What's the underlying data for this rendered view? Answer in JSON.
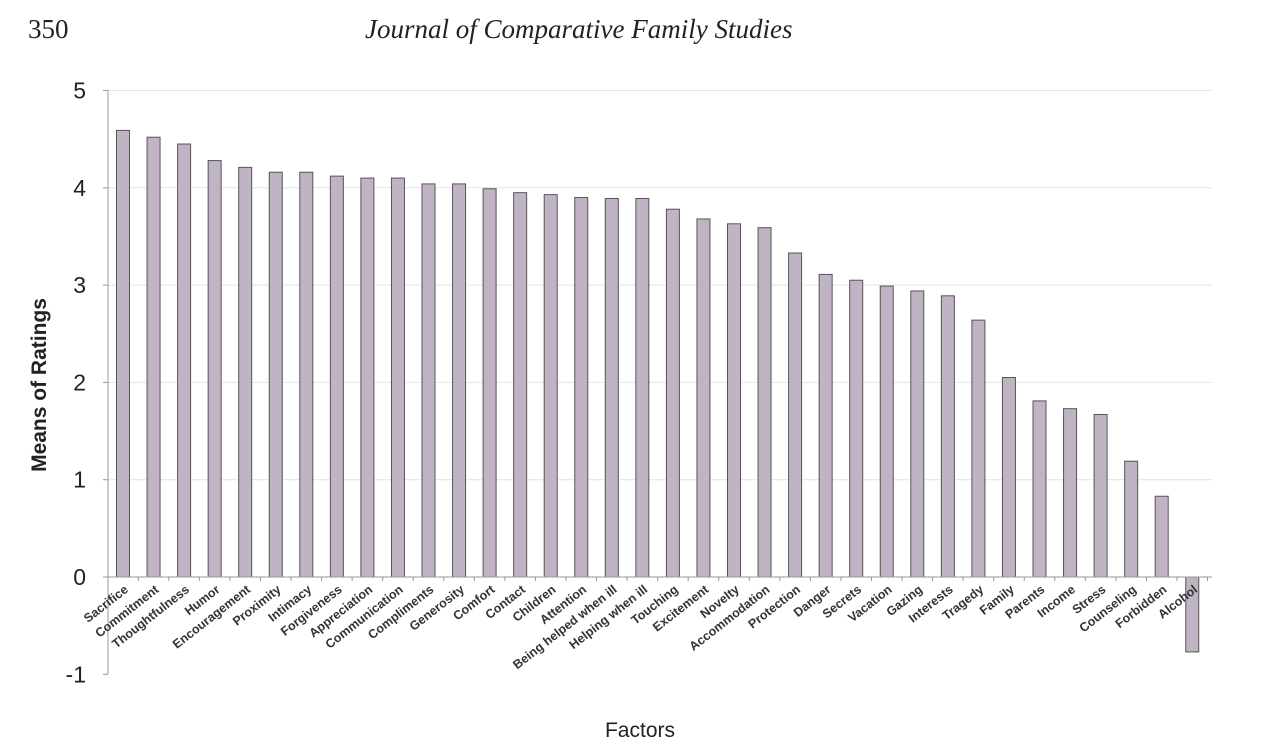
{
  "page": {
    "number": "350",
    "journal_title": "Journal of Comparative Family Studies"
  },
  "colors": {
    "bar": "#c0b4c4",
    "bar_stroke": "#555",
    "axis": "#999",
    "grid": "#e4e4e4"
  },
  "chart_data": {
    "type": "bar",
    "title": "",
    "xlabel": "Factors",
    "ylabel": "Means of Ratings",
    "ylim": [
      -1,
      5
    ],
    "yticks": [
      "-1",
      "0",
      "1",
      "2",
      "3",
      "4",
      "5"
    ],
    "grid": true,
    "categories": [
      "Sacrifice",
      "Commitment",
      "Thoughtfulness",
      "Humor",
      "Encouragement",
      "Proximity",
      "Intimacy",
      "Forgiveness",
      "Appreciation",
      "Communication",
      "Compliments",
      "Generosity",
      "Comfort",
      "Contact",
      "Children",
      "Attention",
      "Being helped when ill",
      "Helping when ill",
      "Touching",
      "Excitement",
      "Novelty",
      "Accommodation",
      "Protection",
      "Danger",
      "Secrets",
      "Vacation",
      "Gazing",
      "Interests",
      "Tragedy",
      "Family",
      "Parents",
      "Income",
      "Stress",
      "Counseling",
      "Forbidden",
      "Alcohol"
    ],
    "values": [
      4.59,
      4.52,
      4.45,
      4.28,
      4.21,
      4.16,
      4.16,
      4.12,
      4.1,
      4.1,
      4.04,
      4.04,
      3.99,
      3.95,
      3.93,
      3.9,
      3.89,
      3.89,
      3.78,
      3.68,
      3.63,
      3.59,
      3.33,
      3.11,
      3.05,
      2.99,
      2.94,
      2.89,
      2.64,
      2.05,
      1.81,
      1.73,
      1.67,
      1.19,
      0.83,
      -0.77
    ]
  }
}
